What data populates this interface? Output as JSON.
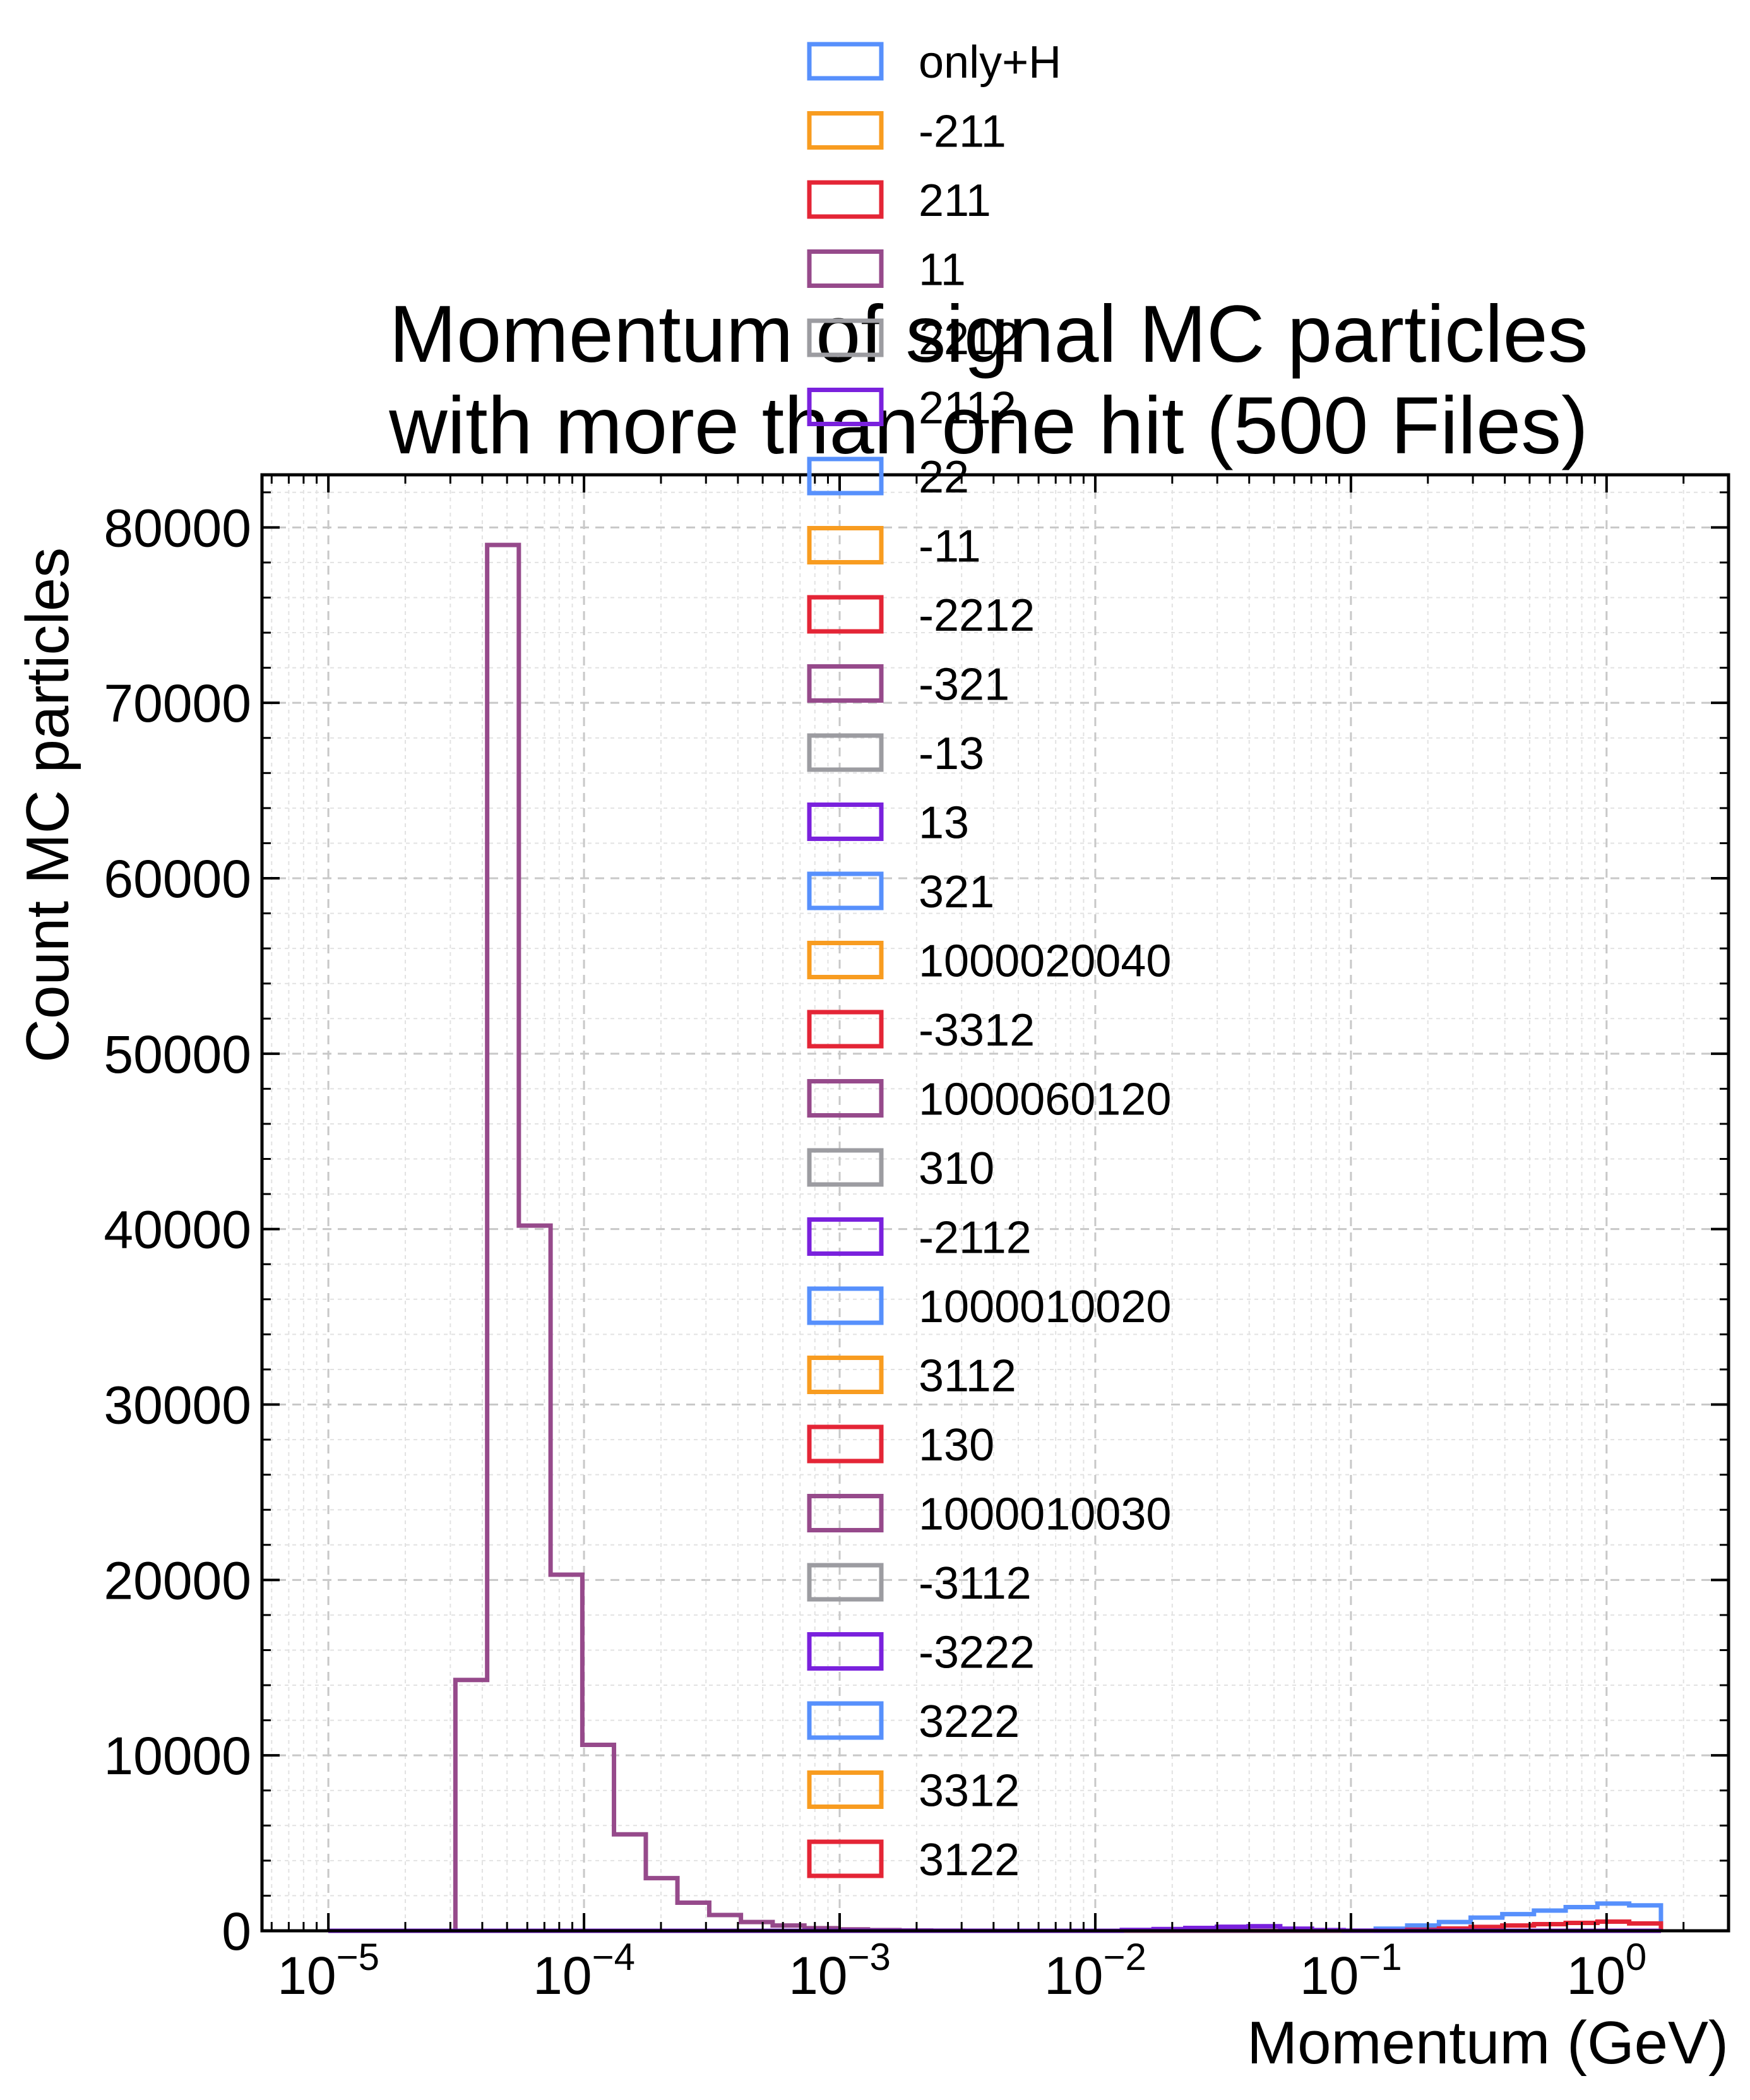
{
  "chart_data": {
    "type": "histogram-step",
    "title": "Momentum of signal MC particles\nwith more than one hit (500 Files)",
    "xlabel": "Momentum (GeV)",
    "ylabel": "Count MC particles",
    "xscale": "log",
    "xlim": [
      5.5e-06,
      3.0
    ],
    "ylim": [
      0,
      83000
    ],
    "grid": true,
    "legend_position": "top-center",
    "x_ticks": [
      {
        "value": 1e-05,
        "base": "10",
        "exp": "−5"
      },
      {
        "value": 0.0001,
        "base": "10",
        "exp": "−4"
      },
      {
        "value": 0.001,
        "base": "10",
        "exp": "−3"
      },
      {
        "value": 0.01,
        "base": "10",
        "exp": "−2"
      },
      {
        "value": 0.1,
        "base": "10",
        "exp": "−1"
      },
      {
        "value": 1,
        "base": "10",
        "exp": "0"
      }
    ],
    "y_ticks": [
      0,
      10000,
      20000,
      30000,
      40000,
      50000,
      60000,
      70000,
      80000
    ],
    "bin_edges": [
      1e-05,
      1.33e-05,
      1.77e-05,
      2.36e-05,
      3.14e-05,
      4.18e-05,
      5.56e-05,
      7.4e-05,
      9.85e-05,
      0.000131,
      0.0001745,
      0.000232,
      0.000309,
      0.000411,
      0.000547,
      0.000728,
      0.000969,
      0.00129,
      0.001715,
      0.00228,
      0.00304,
      0.00404,
      0.00538,
      0.00716,
      0.00953,
      0.0127,
      0.0169,
      0.0225,
      0.0299,
      0.0398,
      0.0529,
      0.0704,
      0.0937,
      0.125,
      0.166,
      0.221,
      0.294,
      0.391,
      0.52,
      0.692,
      0.921,
      1.226,
      1.632
    ],
    "series": [
      {
        "name": "only+H",
        "color": "#5790fc",
        "counts": [
          0,
          0,
          0,
          0,
          0,
          0,
          0,
          0,
          0,
          0,
          0,
          0,
          0,
          0,
          0,
          0,
          0,
          0,
          0,
          0,
          0,
          0,
          0,
          0,
          0,
          0,
          0,
          0,
          0,
          0,
          0,
          0,
          0,
          120,
          300,
          500,
          750,
          950,
          1150,
          1350,
          1550,
          1450
        ]
      },
      {
        "name": "-211",
        "color": "#f89c20",
        "counts": [
          0,
          0,
          0,
          0,
          0,
          0,
          0,
          0,
          0,
          0,
          0,
          0,
          0,
          0,
          0,
          0,
          0,
          0,
          0,
          0,
          0,
          0,
          0,
          0,
          0,
          0,
          0,
          0,
          0,
          0,
          0,
          0,
          0,
          0,
          0,
          0,
          0,
          0,
          0,
          0,
          0,
          0
        ]
      },
      {
        "name": "211",
        "color": "#e42536",
        "counts": [
          0,
          0,
          0,
          0,
          0,
          0,
          0,
          0,
          0,
          0,
          0,
          0,
          0,
          0,
          0,
          0,
          0,
          0,
          0,
          0,
          0,
          0,
          0,
          0,
          0,
          0,
          0,
          0,
          0,
          0,
          0,
          0,
          0,
          0,
          60,
          130,
          220,
          300,
          380,
          450,
          520,
          420
        ]
      },
      {
        "name": "11",
        "color": "#964a8b",
        "counts": [
          0,
          0,
          0,
          0,
          14300,
          79000,
          40200,
          20300,
          10600,
          5500,
          3000,
          1600,
          900,
          500,
          300,
          150,
          80,
          40,
          20,
          10,
          5,
          0,
          0,
          0,
          0,
          0,
          0,
          0,
          0,
          0,
          0,
          0,
          0,
          0,
          0,
          0,
          0,
          0,
          0,
          0,
          0,
          0
        ]
      },
      {
        "name": "2212",
        "color": "#9c9ca1",
        "counts": [
          0,
          0,
          0,
          0,
          0,
          0,
          0,
          0,
          0,
          0,
          0,
          0,
          0,
          0,
          0,
          0,
          0,
          0,
          0,
          0,
          0,
          0,
          0,
          0,
          0,
          0,
          0,
          0,
          0,
          0,
          0,
          0,
          0,
          0,
          0,
          0,
          0,
          0,
          0,
          0,
          0,
          0
        ]
      },
      {
        "name": "2112",
        "color": "#7a21dd",
        "counts": [
          0,
          0,
          0,
          0,
          0,
          0,
          0,
          0,
          0,
          0,
          0,
          0,
          0,
          0,
          0,
          0,
          0,
          0,
          0,
          0,
          0,
          0,
          0,
          0,
          0,
          50,
          100,
          160,
          230,
          260,
          120,
          40,
          10,
          0,
          0,
          0,
          0,
          0,
          0,
          0,
          0,
          0
        ]
      },
      {
        "name": "22",
        "color": "#5790fc",
        "counts": [
          0,
          0,
          0,
          0,
          0,
          0,
          0,
          0,
          0,
          0,
          0,
          0,
          0,
          0,
          0,
          0,
          0,
          0,
          0,
          0,
          0,
          0,
          0,
          0,
          0,
          0,
          0,
          0,
          0,
          0,
          0,
          0,
          0,
          0,
          0,
          0,
          0,
          0,
          0,
          0,
          0,
          0
        ]
      },
      {
        "name": "-11",
        "color": "#f89c20",
        "counts": [
          0,
          0,
          0,
          0,
          0,
          0,
          0,
          0,
          0,
          0,
          0,
          0,
          0,
          0,
          0,
          0,
          0,
          0,
          0,
          0,
          0,
          0,
          0,
          0,
          0,
          0,
          0,
          0,
          0,
          0,
          0,
          0,
          0,
          0,
          0,
          0,
          0,
          0,
          0,
          0,
          0,
          0
        ]
      },
      {
        "name": "-2212",
        "color": "#e42536",
        "counts": [
          0,
          0,
          0,
          0,
          0,
          0,
          0,
          0,
          0,
          0,
          0,
          0,
          0,
          0,
          0,
          0,
          0,
          0,
          0,
          0,
          0,
          0,
          0,
          0,
          0,
          0,
          0,
          0,
          0,
          0,
          0,
          0,
          0,
          0,
          0,
          0,
          0,
          0,
          0,
          0,
          0,
          0
        ]
      },
      {
        "name": "-321",
        "color": "#964a8b",
        "counts": [
          0,
          0,
          0,
          0,
          0,
          0,
          0,
          0,
          0,
          0,
          0,
          0,
          0,
          0,
          0,
          0,
          0,
          0,
          0,
          0,
          0,
          0,
          0,
          0,
          0,
          0,
          0,
          0,
          0,
          0,
          0,
          0,
          0,
          0,
          0,
          0,
          0,
          0,
          0,
          0,
          0,
          0
        ]
      },
      {
        "name": "-13",
        "color": "#9c9ca1",
        "counts": [
          0,
          0,
          0,
          0,
          0,
          0,
          0,
          0,
          0,
          0,
          0,
          0,
          0,
          0,
          0,
          0,
          0,
          0,
          0,
          0,
          0,
          0,
          0,
          0,
          0,
          0,
          0,
          0,
          0,
          0,
          0,
          0,
          0,
          0,
          0,
          0,
          0,
          0,
          0,
          0,
          0,
          0
        ]
      },
      {
        "name": "13",
        "color": "#7a21dd",
        "counts": [
          0,
          0,
          0,
          0,
          0,
          0,
          0,
          0,
          0,
          0,
          0,
          0,
          0,
          0,
          0,
          0,
          0,
          0,
          0,
          0,
          0,
          0,
          0,
          0,
          0,
          0,
          0,
          0,
          0,
          0,
          0,
          0,
          0,
          0,
          0,
          0,
          0,
          0,
          0,
          0,
          0,
          0
        ]
      },
      {
        "name": "321",
        "color": "#5790fc",
        "counts": [
          0,
          0,
          0,
          0,
          0,
          0,
          0,
          0,
          0,
          0,
          0,
          0,
          0,
          0,
          0,
          0,
          0,
          0,
          0,
          0,
          0,
          0,
          0,
          0,
          0,
          0,
          0,
          0,
          0,
          0,
          0,
          0,
          0,
          0,
          0,
          0,
          0,
          0,
          0,
          0,
          0,
          0
        ]
      },
      {
        "name": "1000020040",
        "color": "#f89c20",
        "counts": [
          0,
          0,
          0,
          0,
          0,
          0,
          0,
          0,
          0,
          0,
          0,
          0,
          0,
          0,
          0,
          0,
          0,
          0,
          0,
          0,
          0,
          0,
          0,
          0,
          0,
          0,
          0,
          0,
          0,
          0,
          0,
          0,
          0,
          0,
          0,
          0,
          0,
          0,
          0,
          0,
          0,
          0
        ]
      },
      {
        "name": "-3312",
        "color": "#e42536",
        "counts": [
          0,
          0,
          0,
          0,
          0,
          0,
          0,
          0,
          0,
          0,
          0,
          0,
          0,
          0,
          0,
          0,
          0,
          0,
          0,
          0,
          0,
          0,
          0,
          0,
          0,
          0,
          0,
          0,
          0,
          0,
          0,
          0,
          0,
          0,
          0,
          0,
          0,
          0,
          0,
          0,
          0,
          0
        ]
      },
      {
        "name": "1000060120",
        "color": "#964a8b",
        "counts": [
          0,
          0,
          0,
          0,
          0,
          0,
          0,
          0,
          0,
          0,
          0,
          0,
          0,
          0,
          0,
          0,
          0,
          0,
          0,
          0,
          0,
          0,
          0,
          0,
          0,
          0,
          0,
          0,
          0,
          0,
          0,
          0,
          0,
          0,
          0,
          0,
          0,
          0,
          0,
          0,
          0,
          0
        ]
      },
      {
        "name": "310",
        "color": "#9c9ca1",
        "counts": [
          0,
          0,
          0,
          0,
          0,
          0,
          0,
          0,
          0,
          0,
          0,
          0,
          0,
          0,
          0,
          0,
          0,
          0,
          0,
          0,
          0,
          0,
          0,
          0,
          0,
          0,
          0,
          0,
          0,
          0,
          0,
          0,
          0,
          0,
          0,
          0,
          0,
          0,
          0,
          0,
          0,
          0
        ]
      },
      {
        "name": "-2112",
        "color": "#7a21dd",
        "counts": [
          0,
          0,
          0,
          0,
          0,
          0,
          0,
          0,
          0,
          0,
          0,
          0,
          0,
          0,
          0,
          0,
          0,
          0,
          0,
          0,
          0,
          0,
          0,
          0,
          0,
          0,
          0,
          0,
          0,
          0,
          0,
          0,
          0,
          0,
          0,
          0,
          0,
          0,
          0,
          0,
          0,
          0
        ]
      },
      {
        "name": "1000010020",
        "color": "#5790fc",
        "counts": [
          0,
          0,
          0,
          0,
          0,
          0,
          0,
          0,
          0,
          0,
          0,
          0,
          0,
          0,
          0,
          0,
          0,
          0,
          0,
          0,
          0,
          0,
          0,
          0,
          0,
          0,
          0,
          0,
          0,
          0,
          0,
          0,
          0,
          0,
          0,
          0,
          0,
          0,
          0,
          0,
          0,
          0
        ]
      },
      {
        "name": "3112",
        "color": "#f89c20",
        "counts": [
          0,
          0,
          0,
          0,
          0,
          0,
          0,
          0,
          0,
          0,
          0,
          0,
          0,
          0,
          0,
          0,
          0,
          0,
          0,
          0,
          0,
          0,
          0,
          0,
          0,
          0,
          0,
          0,
          0,
          0,
          0,
          0,
          0,
          0,
          0,
          0,
          0,
          0,
          0,
          0,
          0,
          0
        ]
      },
      {
        "name": "130",
        "color": "#e42536",
        "counts": [
          0,
          0,
          0,
          0,
          0,
          0,
          0,
          0,
          0,
          0,
          0,
          0,
          0,
          0,
          0,
          0,
          0,
          0,
          0,
          0,
          0,
          0,
          0,
          0,
          0,
          0,
          0,
          0,
          0,
          0,
          0,
          0,
          0,
          0,
          0,
          0,
          0,
          0,
          0,
          0,
          0,
          0
        ]
      },
      {
        "name": "1000010030",
        "color": "#964a8b",
        "counts": [
          0,
          0,
          0,
          0,
          0,
          0,
          0,
          0,
          0,
          0,
          0,
          0,
          0,
          0,
          0,
          0,
          0,
          0,
          0,
          0,
          0,
          0,
          0,
          0,
          0,
          0,
          0,
          0,
          0,
          0,
          0,
          0,
          0,
          0,
          0,
          0,
          0,
          0,
          0,
          0,
          0,
          0
        ]
      },
      {
        "name": "-3112",
        "color": "#9c9ca1",
        "counts": [
          0,
          0,
          0,
          0,
          0,
          0,
          0,
          0,
          0,
          0,
          0,
          0,
          0,
          0,
          0,
          0,
          0,
          0,
          0,
          0,
          0,
          0,
          0,
          0,
          0,
          0,
          0,
          0,
          0,
          0,
          0,
          0,
          0,
          0,
          0,
          0,
          0,
          0,
          0,
          0,
          0,
          0
        ]
      },
      {
        "name": "-3222",
        "color": "#7a21dd",
        "counts": [
          0,
          0,
          0,
          0,
          0,
          0,
          0,
          0,
          0,
          0,
          0,
          0,
          0,
          0,
          0,
          0,
          0,
          0,
          0,
          0,
          0,
          0,
          0,
          0,
          0,
          0,
          0,
          0,
          0,
          0,
          0,
          0,
          0,
          0,
          0,
          0,
          0,
          0,
          0,
          0,
          0,
          0
        ]
      },
      {
        "name": "3222",
        "color": "#5790fc",
        "counts": [
          0,
          0,
          0,
          0,
          0,
          0,
          0,
          0,
          0,
          0,
          0,
          0,
          0,
          0,
          0,
          0,
          0,
          0,
          0,
          0,
          0,
          0,
          0,
          0,
          0,
          0,
          0,
          0,
          0,
          0,
          0,
          0,
          0,
          0,
          0,
          0,
          0,
          0,
          0,
          0,
          0,
          0
        ]
      },
      {
        "name": "3312",
        "color": "#f89c20",
        "counts": [
          0,
          0,
          0,
          0,
          0,
          0,
          0,
          0,
          0,
          0,
          0,
          0,
          0,
          0,
          0,
          0,
          0,
          0,
          0,
          0,
          0,
          0,
          0,
          0,
          0,
          0,
          0,
          0,
          0,
          0,
          0,
          0,
          0,
          0,
          0,
          0,
          0,
          0,
          0,
          0,
          0,
          0
        ]
      },
      {
        "name": "3122",
        "color": "#e42536",
        "counts": [
          0,
          0,
          0,
          0,
          0,
          0,
          0,
          0,
          0,
          0,
          0,
          0,
          0,
          0,
          0,
          0,
          0,
          0,
          0,
          0,
          0,
          0,
          0,
          0,
          0,
          0,
          0,
          0,
          0,
          0,
          0,
          0,
          0,
          0,
          0,
          0,
          0,
          0,
          0,
          0,
          0,
          0
        ]
      }
    ]
  }
}
